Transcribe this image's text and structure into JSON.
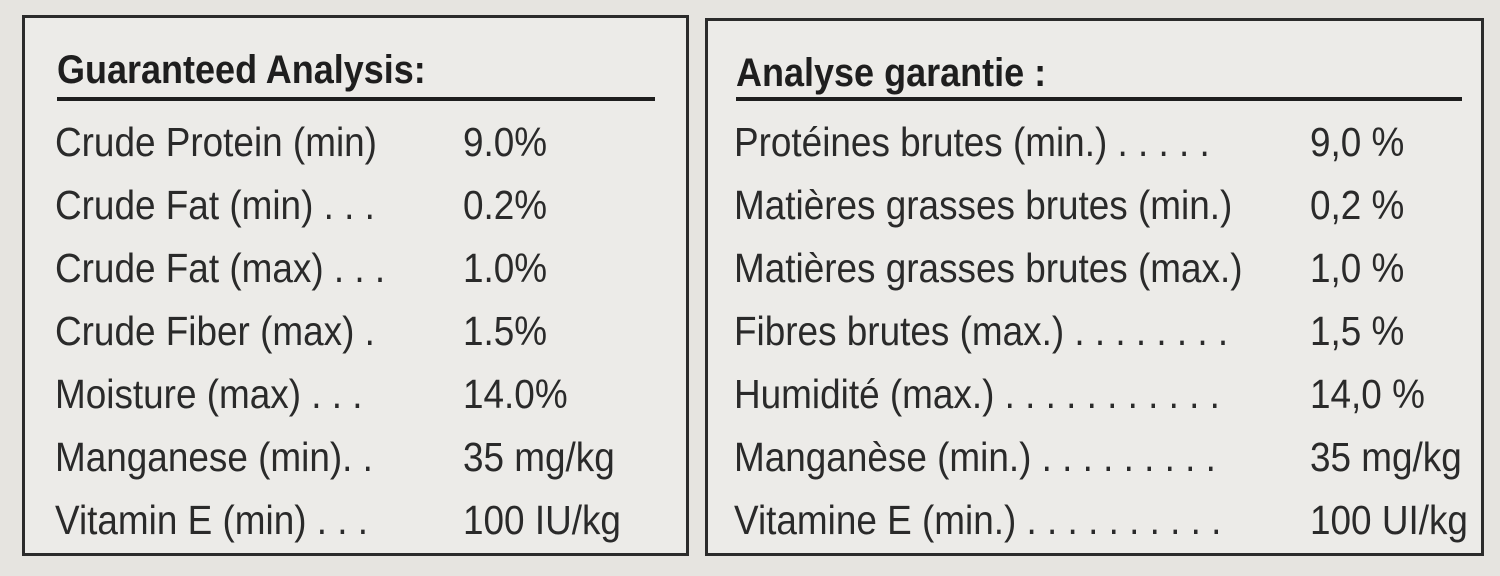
{
  "english": {
    "title": "Guaranteed Analysis:",
    "rows": [
      {
        "label": "Crude Protein (min)",
        "value": "9.0%"
      },
      {
        "label": "Crude Fat (min) . . .",
        "value": "0.2%"
      },
      {
        "label": "Crude Fat (max) . . .",
        "value": "1.0%"
      },
      {
        "label": "Crude Fiber (max) .",
        "value": "1.5%"
      },
      {
        "label": "Moisture (max) . . .",
        "value": "14.0%"
      },
      {
        "label": "Manganese (min). .",
        "value": "35 mg/kg"
      },
      {
        "label": "Vitamin E (min) . . .",
        "value": "100 IU/kg"
      }
    ]
  },
  "french": {
    "title": "Analyse garantie :",
    "rows": [
      {
        "label": "Protéines brutes (min.) . . . . .",
        "value": "9,0 %"
      },
      {
        "label": "Matières grasses brutes (min.)",
        "value": "0,2 %"
      },
      {
        "label": "Matières grasses brutes (max.)",
        "value": "1,0 %"
      },
      {
        "label": "Fibres brutes (max.) . . . . . . . .",
        "value": "1,5 %"
      },
      {
        "label": "Humidité (max.) . . . . . . . . . . .",
        "value": "14,0 %"
      },
      {
        "label": "Manganèse (min.) . . . . . . . . .",
        "value": "35 mg/kg"
      },
      {
        "label": "Vitamine E (min.) . . . . . . . . . .",
        "value": "100 UI/kg"
      }
    ]
  }
}
